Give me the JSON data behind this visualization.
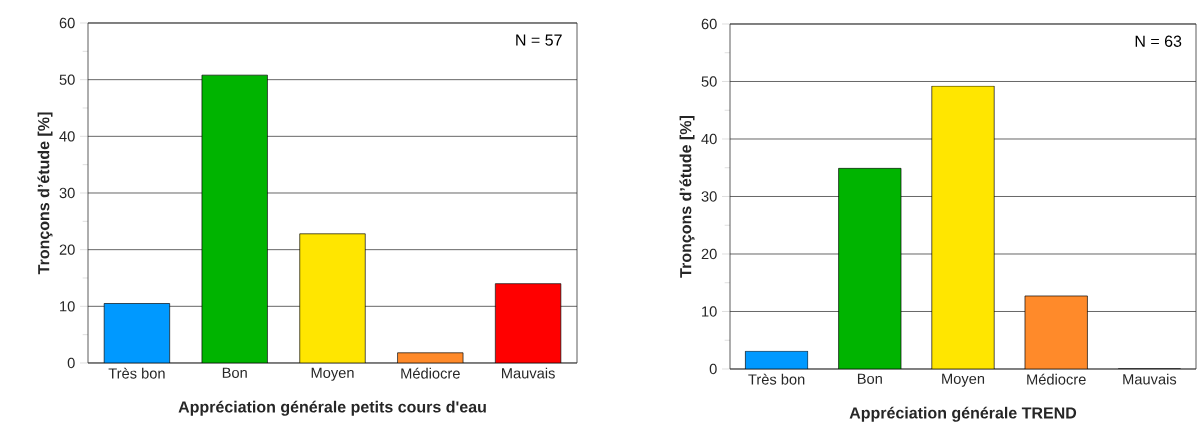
{
  "chart_data": [
    {
      "type": "bar",
      "xlabel": "Appréciation générale petits cours d'eau",
      "ylabel": "Tronçons d’étude  [%]",
      "annotations": [
        "N = 57"
      ],
      "categories": [
        "Très bon",
        "Bon",
        "Moyen",
        "Médiocre",
        "Mauvais"
      ],
      "values": [
        10.5,
        50.8,
        22.8,
        1.8,
        14.0
      ],
      "colors": [
        "#0099ff",
        "#00b400",
        "#ffe600",
        "#ff8a2a",
        "#ff0000"
      ],
      "ylim": [
        0,
        60
      ],
      "yticks": [
        0,
        10,
        20,
        30,
        40,
        50,
        60
      ],
      "grid": "y"
    },
    {
      "type": "bar",
      "xlabel": "Appréciation générale TREND",
      "ylabel": "Tronçons d’étude  [%]",
      "annotations": [
        "N = 63"
      ],
      "categories": [
        "Très bon",
        "Bon",
        "Moyen",
        "Médiocre",
        "Mauvais"
      ],
      "values": [
        3.1,
        34.9,
        49.2,
        12.7,
        0
      ],
      "colors": [
        "#0099ff",
        "#00b400",
        "#ffe600",
        "#ff8a2a",
        "#ff0000"
      ],
      "ylim": [
        0,
        60
      ],
      "yticks": [
        0,
        10,
        20,
        30,
        40,
        50,
        60
      ],
      "grid": "y"
    }
  ]
}
